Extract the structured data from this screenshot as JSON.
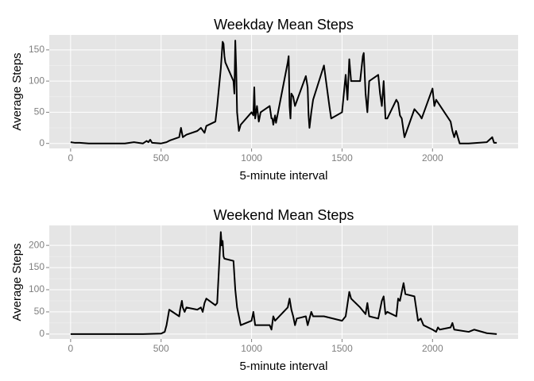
{
  "chart_data": [
    {
      "type": "line",
      "title": "Weekday Mean Steps",
      "x_label": "5-minute interval",
      "y_label": "Average Steps",
      "color": "#000000",
      "grid": true,
      "xlim": [
        -118,
        2473
      ],
      "ylim": [
        -8,
        174
      ],
      "xticks": [
        0,
        500,
        1000,
        1500,
        2000
      ],
      "yticks": [
        0,
        50,
        100,
        150
      ],
      "x": [
        0,
        25,
        50,
        100,
        200,
        300,
        350,
        400,
        420,
        430,
        440,
        450,
        500,
        530,
        550,
        600,
        610,
        620,
        640,
        700,
        720,
        740,
        750,
        800,
        810,
        820,
        830,
        840,
        845,
        850,
        855,
        900,
        905,
        910,
        915,
        920,
        930,
        940,
        1000,
        1010,
        1015,
        1020,
        1030,
        1040,
        1050,
        1100,
        1110,
        1115,
        1120,
        1130,
        1135,
        1200,
        1205,
        1210,
        1215,
        1220,
        1230,
        1240,
        1300,
        1310,
        1315,
        1320,
        1330,
        1340,
        1400,
        1430,
        1440,
        1500,
        1520,
        1530,
        1540,
        1550,
        1600,
        1615,
        1620,
        1630,
        1640,
        1650,
        1700,
        1710,
        1720,
        1730,
        1740,
        1750,
        1800,
        1810,
        1820,
        1830,
        1845,
        1900,
        1930,
        1940,
        2000,
        2010,
        2020,
        2100,
        2110,
        2120,
        2130,
        2150,
        2200,
        2300,
        2330,
        2340,
        2355
      ],
      "values": [
        2,
        1,
        1,
        0,
        0,
        0,
        2,
        0,
        4,
        2,
        6,
        1,
        0,
        2,
        5,
        10,
        25,
        10,
        14,
        20,
        25,
        17,
        28,
        35,
        60,
        90,
        120,
        163,
        160,
        140,
        130,
        100,
        80,
        165,
        120,
        50,
        20,
        30,
        50,
        45,
        90,
        40,
        60,
        35,
        50,
        60,
        40,
        40,
        30,
        45,
        33,
        130,
        140,
        60,
        40,
        80,
        75,
        60,
        108,
        90,
        45,
        25,
        50,
        70,
        125,
        60,
        40,
        50,
        110,
        70,
        135,
        100,
        100,
        140,
        145,
        80,
        50,
        100,
        110,
        80,
        60,
        100,
        40,
        40,
        70,
        65,
        45,
        40,
        10,
        55,
        45,
        40,
        88,
        60,
        70,
        35,
        20,
        10,
        20,
        0,
        0,
        2,
        10,
        1,
        1
      ]
    },
    {
      "type": "line",
      "title": "Weekend Mean Steps",
      "x_label": "5-minute interval",
      "y_label": "Average Steps",
      "color": "#000000",
      "grid": true,
      "xlim": [
        -118,
        2473
      ],
      "ylim": [
        -11,
        245
      ],
      "xticks": [
        0,
        500,
        1000,
        1500,
        2000
      ],
      "yticks": [
        0,
        50,
        100,
        150,
        200
      ],
      "x": [
        0,
        100,
        200,
        300,
        400,
        500,
        520,
        530,
        545,
        600,
        605,
        615,
        620,
        630,
        640,
        700,
        720,
        730,
        740,
        750,
        800,
        810,
        820,
        830,
        835,
        840,
        845,
        850,
        900,
        910,
        920,
        930,
        940,
        1000,
        1010,
        1020,
        1100,
        1110,
        1120,
        1130,
        1200,
        1210,
        1220,
        1230,
        1240,
        1250,
        1300,
        1310,
        1320,
        1330,
        1340,
        1400,
        1500,
        1520,
        1540,
        1550,
        1600,
        1630,
        1640,
        1650,
        1700,
        1720,
        1730,
        1740,
        1750,
        1800,
        1810,
        1820,
        1840,
        1850,
        1900,
        1920,
        1935,
        1950,
        2000,
        2020,
        2030,
        2040,
        2100,
        2110,
        2120,
        2200,
        2230,
        2300,
        2355
      ],
      "values": [
        0,
        0,
        0,
        0,
        0,
        1,
        5,
        20,
        55,
        40,
        55,
        75,
        60,
        50,
        60,
        55,
        60,
        50,
        70,
        80,
        65,
        70,
        150,
        230,
        200,
        210,
        175,
        170,
        165,
        100,
        60,
        40,
        20,
        30,
        50,
        20,
        20,
        10,
        40,
        30,
        60,
        80,
        55,
        40,
        20,
        35,
        40,
        20,
        35,
        50,
        40,
        40,
        30,
        40,
        95,
        80,
        60,
        45,
        70,
        40,
        35,
        75,
        85,
        45,
        50,
        40,
        80,
        75,
        115,
        90,
        85,
        30,
        35,
        20,
        10,
        5,
        15,
        10,
        15,
        25,
        10,
        5,
        10,
        2,
        0
      ]
    }
  ]
}
